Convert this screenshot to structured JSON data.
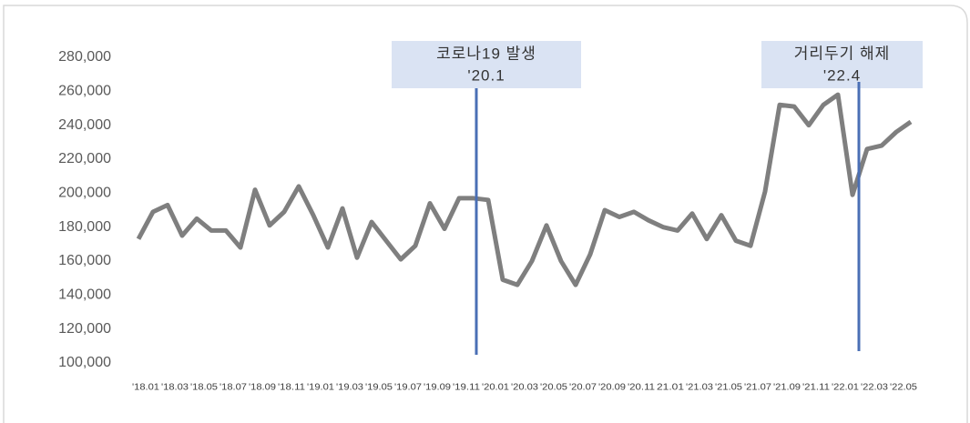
{
  "chart_data": {
    "type": "line",
    "categories": [
      "'18.01",
      null,
      "'18.03",
      null,
      "'18.05",
      null,
      "'18.07",
      null,
      "'18.09",
      null,
      "'18.11",
      null,
      "'19.01",
      null,
      "'19.03",
      null,
      "'19.05",
      null,
      "'19.07",
      null,
      "'19.09",
      null,
      "'19.11",
      null,
      "'20.01",
      null,
      "'20.03",
      null,
      "'20.05",
      null,
      "'20.07",
      null,
      "'20.09",
      null,
      "'20.11",
      null,
      "21.01",
      null,
      "'21.03",
      null,
      "'21.05",
      null,
      "'21.07",
      null,
      "'21.09",
      null,
      "'21.11",
      null,
      "'22.01",
      null,
      "'22.03",
      null,
      "'22.05",
      null
    ],
    "values": [
      173000,
      189000,
      193000,
      175000,
      185000,
      178000,
      178000,
      168000,
      202000,
      181000,
      189000,
      204000,
      187000,
      168000,
      191000,
      162000,
      183000,
      172000,
      161000,
      169000,
      194000,
      179000,
      197000,
      197000,
      196000,
      149000,
      146000,
      160000,
      181000,
      160000,
      146000,
      164000,
      190000,
      186000,
      189000,
      184000,
      180000,
      178000,
      188000,
      173000,
      187000,
      172000,
      169000,
      201000,
      252000,
      251000,
      240000,
      252000,
      258000,
      199000,
      226000,
      228000,
      236000,
      242000
    ],
    "color": "#7f7f7f",
    "ylim": [
      100000,
      280000
    ],
    "yticks": [
      {
        "value": 100000,
        "label": "100,000"
      },
      {
        "value": 120000,
        "label": "120,000"
      },
      {
        "value": 140000,
        "label": "140,000"
      },
      {
        "value": 160000,
        "label": "160,000"
      },
      {
        "value": 180000,
        "label": "180,000"
      },
      {
        "value": 200000,
        "label": "200,000"
      },
      {
        "value": 220000,
        "label": "220,000"
      },
      {
        "value": 240000,
        "label": "240,000"
      },
      {
        "value": 260000,
        "label": "260,000"
      },
      {
        "value": 280000,
        "label": "280,000"
      }
    ],
    "grid": false,
    "annotations": [
      {
        "lines": [
          "코로나19 발생",
          "'20.1"
        ]
      },
      {
        "lines": [
          "거리두기 해제",
          "'22.4"
        ]
      }
    ]
  }
}
